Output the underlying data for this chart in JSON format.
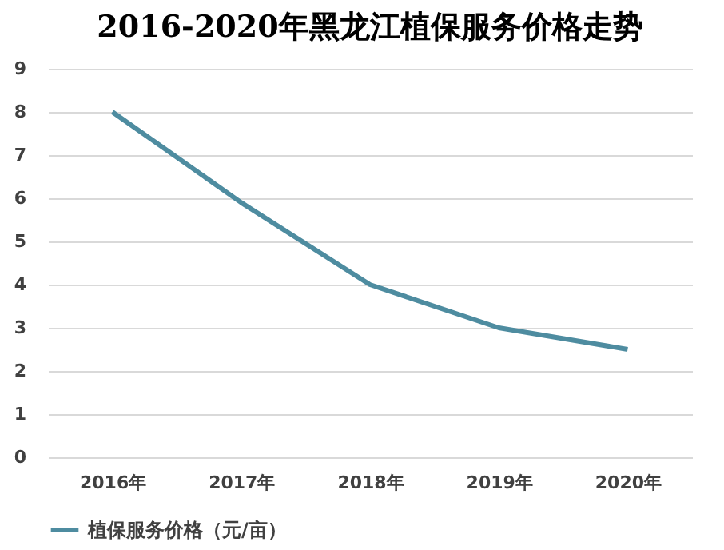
{
  "chart_data": {
    "type": "line",
    "title": "2016-2020年黑龙江植保服务价格走势",
    "categories": [
      "2016年",
      "2017年",
      "2018年",
      "2019年",
      "2020年"
    ],
    "series": [
      {
        "name": "植保服务价格（元/亩）",
        "color": "#4e8ca0",
        "values": [
          8,
          5.9,
          4,
          3,
          2.5
        ]
      }
    ],
    "ylim": [
      0,
      9
    ],
    "yticks": [
      0,
      1,
      2,
      3,
      4,
      5,
      6,
      7,
      8,
      9
    ],
    "grid": "y",
    "legend": "bottom",
    "marker": "none",
    "line_style": "solid"
  }
}
